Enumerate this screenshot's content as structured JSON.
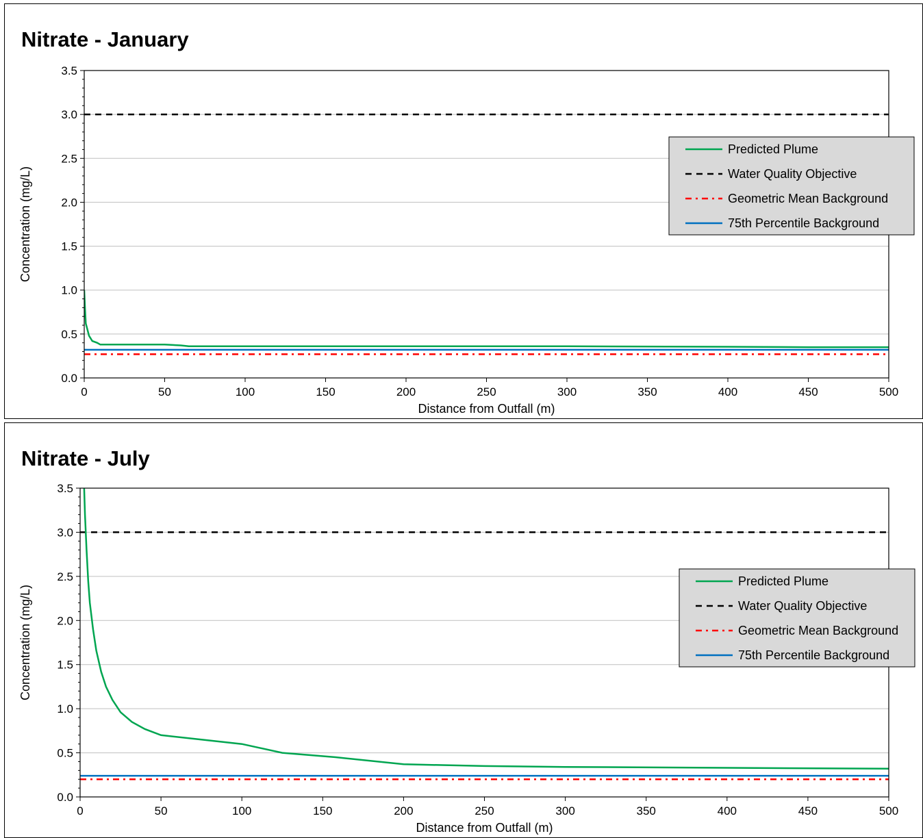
{
  "chart_data": [
    {
      "type": "line",
      "title": "Nitrate  - January",
      "xlabel": "Distance from Outfall (m)",
      "ylabel": "Concentration  (mg/L)",
      "xlim": [
        0,
        500
      ],
      "ylim": [
        0,
        3.5
      ],
      "xticks": [
        "0",
        "50",
        "100",
        "150",
        "200",
        "250",
        "300",
        "350",
        "400",
        "450",
        "500"
      ],
      "yticks": [
        "0.0",
        "0.5",
        "1.0",
        "1.5",
        "2.0",
        "2.5",
        "3.0",
        "3.5"
      ],
      "grid": "horizontal",
      "legend_position": "top-right",
      "series": [
        {
          "name": "Predicted Plume",
          "color": "#00a550",
          "style": "solid",
          "x": [
            0,
            0.5,
            1,
            2,
            3,
            5,
            8,
            10,
            20,
            30,
            40,
            50,
            60,
            65,
            100,
            200,
            300,
            400,
            450,
            500
          ],
          "y": [
            1.0,
            0.78,
            0.62,
            0.55,
            0.48,
            0.42,
            0.4,
            0.38,
            0.38,
            0.38,
            0.38,
            0.38,
            0.37,
            0.36,
            0.36,
            0.36,
            0.36,
            0.355,
            0.35,
            0.35
          ]
        },
        {
          "name": "Water Quality Objective",
          "color": "#000000",
          "style": "dashed",
          "x": [
            0,
            500
          ],
          "y": [
            3.0,
            3.0
          ]
        },
        {
          "name": "Geometric Mean Background",
          "color": "#ff0000",
          "style": "dashdot",
          "x": [
            0,
            500
          ],
          "y": [
            0.27,
            0.27
          ]
        },
        {
          "name": "75th Percentile Background",
          "color": "#0070c0",
          "style": "solid",
          "x": [
            0,
            500
          ],
          "y": [
            0.32,
            0.32
          ]
        }
      ]
    },
    {
      "type": "line",
      "title": "Nitrate  - July",
      "xlabel": "Distance from Outfall (m)",
      "ylabel": "Concentration  (mg/L)",
      "xlim": [
        0,
        500
      ],
      "ylim": [
        0,
        3.5
      ],
      "xticks": [
        "0",
        "50",
        "100",
        "150",
        "200",
        "250",
        "300",
        "350",
        "400",
        "450",
        "500"
      ],
      "yticks": [
        "0.0",
        "0.5",
        "1.0",
        "1.5",
        "2.0",
        "2.5",
        "3.0",
        "3.5"
      ],
      "grid": "horizontal",
      "legend_position": "top-right",
      "series": [
        {
          "name": "Predicted Plume",
          "color": "#00a550",
          "style": "solid",
          "x": [
            2.5,
            3,
            4,
            5,
            6,
            8,
            10,
            13,
            16,
            20,
            25,
            32,
            40,
            50,
            75,
            100,
            125,
            158,
            200,
            250,
            300,
            400,
            500
          ],
          "y": [
            3.5,
            3.2,
            2.8,
            2.45,
            2.2,
            1.9,
            1.66,
            1.42,
            1.25,
            1.1,
            0.96,
            0.85,
            0.77,
            0.7,
            0.65,
            0.6,
            0.5,
            0.45,
            0.37,
            0.35,
            0.34,
            0.33,
            0.32
          ]
        },
        {
          "name": "Water Quality Objective",
          "color": "#000000",
          "style": "dashed",
          "x": [
            0,
            500
          ],
          "y": [
            3.0,
            3.0
          ]
        },
        {
          "name": "Geometric Mean Background",
          "color": "#ff0000",
          "style": "dashdot",
          "x": [
            0,
            500
          ],
          "y": [
            0.2,
            0.2
          ]
        },
        {
          "name": "75th Percentile Background",
          "color": "#0070c0",
          "style": "solid",
          "x": [
            0,
            500
          ],
          "y": [
            0.24,
            0.24
          ]
        }
      ]
    }
  ]
}
